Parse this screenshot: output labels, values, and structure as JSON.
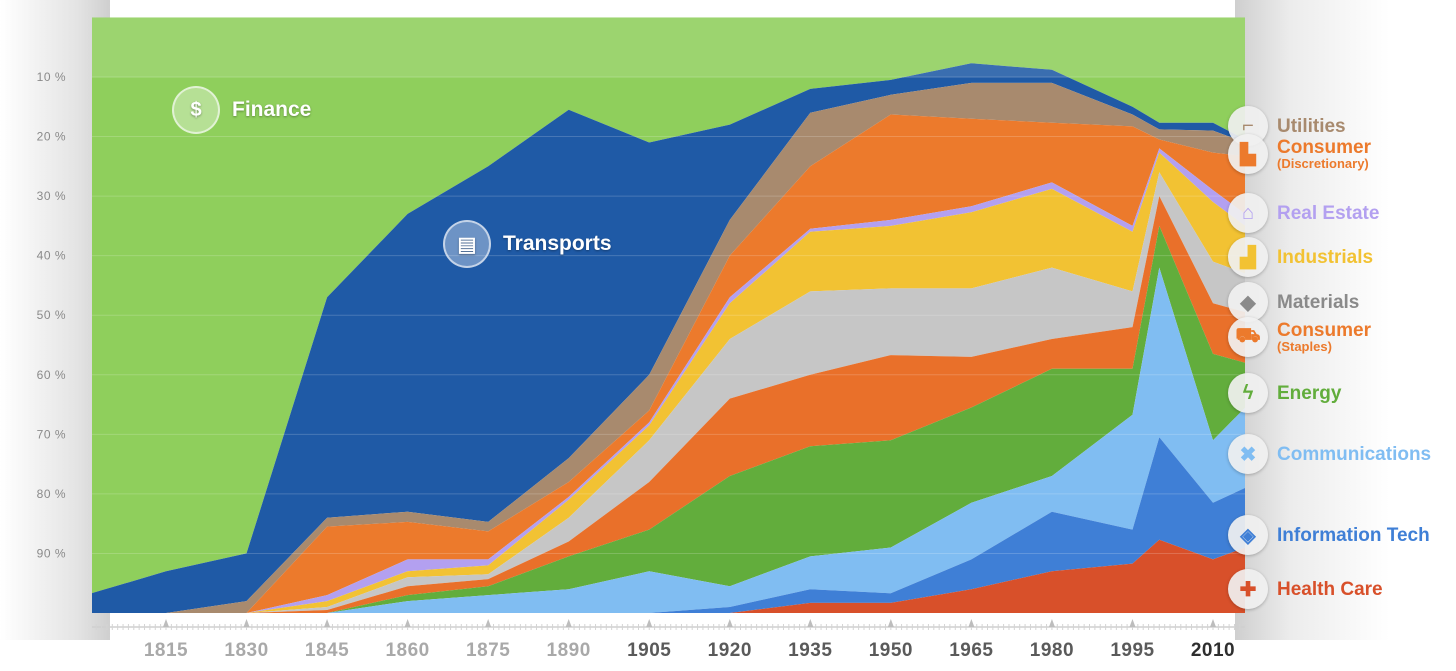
{
  "chart_data": {
    "type": "area",
    "stacked": "percent",
    "title": "",
    "xlabel": "",
    "ylabel": "",
    "xlim": [
      1801,
      2016
    ],
    "ylim": [
      0,
      100
    ],
    "y_ticks": [
      "10 %",
      "20 %",
      "30 %",
      "40 %",
      "50 %",
      "60 %",
      "70 %",
      "80 %",
      "90 %"
    ],
    "y_tick_values": [
      10,
      20,
      30,
      40,
      50,
      60,
      70,
      80,
      90
    ],
    "x_ticks": [
      1815,
      1830,
      1845,
      1860,
      1875,
      1890,
      1905,
      1920,
      1935,
      1950,
      1965,
      1980,
      1995,
      2010
    ],
    "x_tick_labels": [
      "1815",
      "1830",
      "1845",
      "1860",
      "1875",
      "1890",
      "1905",
      "1920",
      "1935",
      "1950",
      "1965",
      "1980",
      "1995",
      "2010"
    ],
    "x": [
      1800,
      1815,
      1830,
      1845,
      1860,
      1875,
      1890,
      1905,
      1920,
      1935,
      1950,
      1965,
      1980,
      1995,
      2000,
      2010,
      2016
    ],
    "series": [
      {
        "name": "Finance",
        "color": "#8fcf5c",
        "values": [
          97,
          93,
          90,
          47,
          33,
          25,
          15.5,
          21,
          18,
          12,
          10.5,
          7.7,
          8.8,
          15,
          17.7,
          17.7,
          20.5
        ]
      },
      {
        "name": "Transports",
        "color": "#1f5aa6",
        "values": [
          3,
          7,
          8,
          37,
          50,
          59.7,
          58.5,
          39,
          16,
          4,
          2.5,
          3.3,
          2.2,
          1.3,
          1.1,
          1.3,
          0.5
        ]
      },
      {
        "name": "Utilities",
        "color": "#a88a6e",
        "values": [
          0,
          0,
          2,
          1.5,
          1.7,
          1.6,
          4,
          6,
          6,
          9,
          3.3,
          6,
          6.7,
          2,
          1.7,
          3.7,
          2.3
        ]
      },
      {
        "name": "Consumer (Discretionary)",
        "color": "#ec7a2c",
        "values": [
          0,
          0,
          0,
          11.5,
          6.3,
          4.7,
          2.5,
          2,
          7,
          10.5,
          17.7,
          14.7,
          10,
          16.7,
          1.5,
          6.3,
          9.7
        ]
      },
      {
        "name": "Real Estate",
        "color": "#b3a0f0",
        "values": [
          0,
          0,
          0,
          1,
          2,
          1,
          0.5,
          0.5,
          1,
          0.5,
          1,
          1,
          1.1,
          1,
          0.7,
          2,
          2
        ]
      },
      {
        "name": "Industrials",
        "color": "#f2c233",
        "values": [
          0,
          0,
          0,
          1,
          1,
          1.5,
          3,
          2.5,
          6,
          10,
          10.5,
          12.8,
          13.2,
          10,
          3.3,
          10,
          8
        ]
      },
      {
        "name": "Materials",
        "color": "#c6c6c6",
        "values": [
          0,
          0,
          0,
          0.5,
          1.5,
          0.8,
          4,
          7,
          10,
          14,
          11.2,
          11.5,
          12,
          6,
          4,
          7,
          6.5
        ]
      },
      {
        "name": "Consumer (Staples)",
        "color": "#e9702a",
        "values": [
          0,
          0,
          0,
          0.5,
          1.5,
          1.2,
          2.5,
          8,
          13,
          12,
          14.3,
          8.5,
          5,
          7,
          5,
          8.5,
          8.5
        ]
      },
      {
        "name": "Energy",
        "color": "#62ad3c",
        "values": [
          0,
          0,
          0,
          0,
          1,
          1.5,
          5.5,
          7,
          18.5,
          18.5,
          18,
          16,
          18,
          7.7,
          7,
          14.5,
          7.5
        ]
      },
      {
        "name": "Communications",
        "color": "#80bdf2",
        "values": [
          0,
          0,
          0,
          0,
          2,
          3,
          4,
          7,
          3.5,
          5.5,
          7.7,
          9.5,
          6,
          19.3,
          28.5,
          10.5,
          13.5
        ]
      },
      {
        "name": "Information Tech",
        "color": "#3f7fd6",
        "values": [
          0,
          0,
          0,
          0,
          0,
          0,
          0,
          0,
          1,
          2.3,
          1.6,
          5,
          10,
          5.7,
          17.2,
          9.5,
          10
        ]
      },
      {
        "name": "Health Care",
        "color": "#d8502a",
        "values": [
          0,
          0,
          0,
          0,
          0,
          0,
          0,
          0,
          0,
          1.7,
          1.7,
          4,
          7,
          8.3,
          12.3,
          9,
          11
        ]
      }
    ],
    "annotations": [
      {
        "label": "Finance",
        "icon": "money-bag-icon"
      },
      {
        "label": "Transports",
        "icon": "train-icon"
      }
    ],
    "legend_placement": "right"
  },
  "legend": [
    {
      "label": "Utilities",
      "sub": "",
      "color": "#a88a6e",
      "icon": "faucet-icon",
      "glyph": "⌐"
    },
    {
      "label": "Consumer",
      "sub": "(Discretionary)",
      "color": "#ec7a2c",
      "icon": "factory-icon",
      "glyph": "▙"
    },
    {
      "label": "Real Estate",
      "sub": "",
      "color": "#b3a0f0",
      "icon": "house-icon",
      "glyph": "⌂"
    },
    {
      "label": "Industrials",
      "sub": "",
      "color": "#f2c233",
      "icon": "industry-icon",
      "glyph": "▟"
    },
    {
      "label": "Materials",
      "sub": "",
      "color": "#8a8a8a",
      "icon": "diamond-icon",
      "glyph": "◆"
    },
    {
      "label": "Consumer",
      "sub": "(Staples)",
      "color": "#ec7a2c",
      "icon": "cart-icon",
      "glyph": "⛟"
    },
    {
      "label": "Energy",
      "sub": "",
      "color": "#62ad3c",
      "icon": "lightning-icon",
      "glyph": "ϟ"
    },
    {
      "label": "Communications",
      "sub": "",
      "color": "#80bdf2",
      "icon": "satellite-icon",
      "glyph": "✖"
    },
    {
      "label": "Information Tech",
      "sub": "",
      "color": "#3f7fd6",
      "icon": "chip-icon",
      "glyph": "◈"
    },
    {
      "label": "Health Care",
      "sub": "",
      "color": "#d8502a",
      "icon": "cross-icon",
      "glyph": "✚"
    }
  ],
  "annotation_glyphs": {
    "finance": "$",
    "transports": "▤"
  }
}
